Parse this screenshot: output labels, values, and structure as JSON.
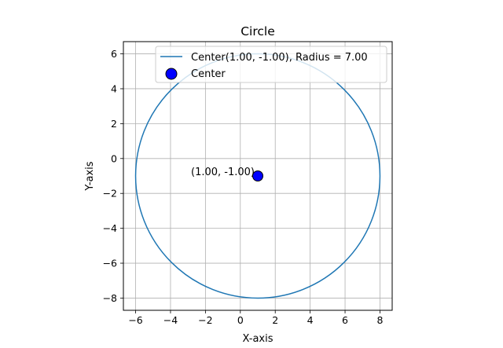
{
  "chart_data": {
    "type": "line",
    "title": "Circle",
    "xlabel": "X-axis",
    "ylabel": "Y-axis",
    "xlim": [
      -6.7,
      8.7
    ],
    "ylim": [
      -8.7,
      6.7
    ],
    "xticks": [
      -6,
      -4,
      -2,
      0,
      2,
      4,
      6,
      8
    ],
    "yticks": [
      -8,
      -6,
      -4,
      -2,
      0,
      2,
      4,
      6
    ],
    "xtick_labels": [
      "−6",
      "−4",
      "−2",
      "0",
      "2",
      "4",
      "6",
      "8"
    ],
    "ytick_labels": [
      "−8",
      "−6",
      "−4",
      "−2",
      "0",
      "2",
      "4",
      "6"
    ],
    "grid": true,
    "legend_position": "top-right",
    "series": [
      {
        "name": "Center(1.00, -1.00), Radius = 7.00",
        "kind": "circle",
        "center": [
          1.0,
          -1.0
        ],
        "radius": 7.0,
        "color": "#1f77b4"
      },
      {
        "name": "Center",
        "kind": "scatter",
        "x": [
          1.0
        ],
        "y": [
          -1.0
        ],
        "color": "#0000ff",
        "edgecolor": "#000000"
      }
    ],
    "annotations": [
      {
        "text": "(1.00, -1.00)",
        "x": 1.0,
        "y": -1.0
      }
    ]
  }
}
